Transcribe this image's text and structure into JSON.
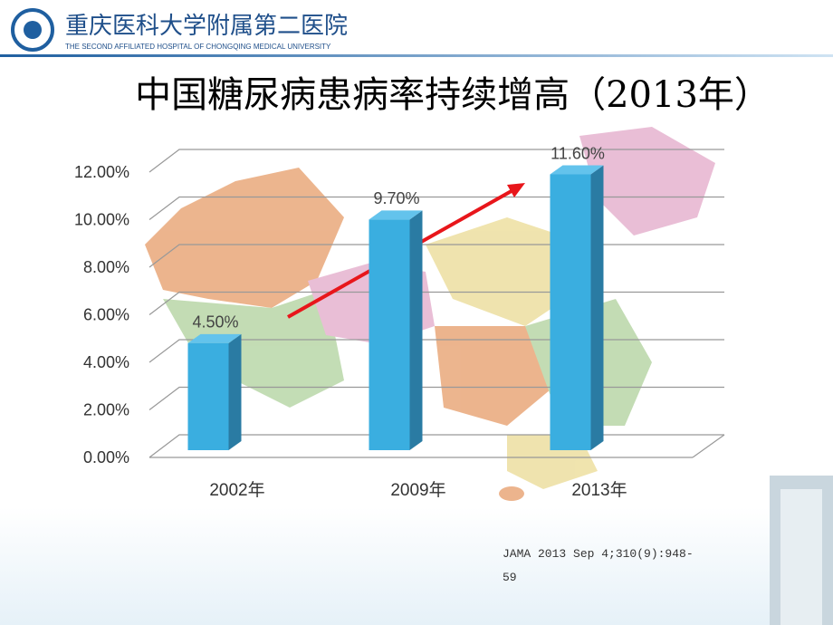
{
  "header": {
    "title": "重庆医科大学附属第二医院",
    "subtitle": "THE SECOND AFFILIATED HOSPITAL OF CHONGQING MEDICAL UNIVERSITY"
  },
  "chart_data": {
    "type": "bar",
    "title": "中国糖尿病患病率持续增高（2013年）",
    "categories": [
      "2002年",
      "2009年",
      "2013年"
    ],
    "values": [
      4.5,
      9.7,
      11.6
    ],
    "value_labels": [
      "4.50%",
      "9.70%",
      "11.60%"
    ],
    "color": "#3aaee0",
    "ylim": [
      0,
      12
    ],
    "yticks": [
      {
        "value": 0,
        "label": "0.00%"
      },
      {
        "value": 2,
        "label": "2.00%"
      },
      {
        "value": 4,
        "label": "4.00%"
      },
      {
        "value": 6,
        "label": "6.00%"
      },
      {
        "value": 8,
        "label": "8.00%"
      },
      {
        "value": 10,
        "label": "10.00%"
      },
      {
        "value": 12,
        "label": "12.00%"
      }
    ],
    "grid": true
  },
  "citation": "JAMA 2013 Sep 4;310(9):948-59"
}
